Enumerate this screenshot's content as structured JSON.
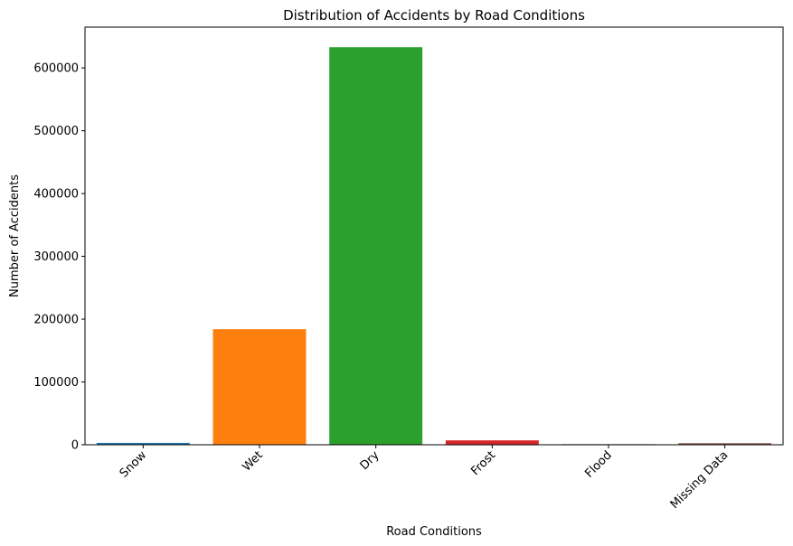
{
  "chart_data": {
    "type": "bar",
    "title": "Distribution of Accidents by Road Conditions",
    "xlabel": "Road Conditions",
    "ylabel": "Number of Accidents",
    "categories": [
      "Snow",
      "Wet",
      "Dry",
      "Frost",
      "Flood",
      "Missing Data"
    ],
    "values": [
      3000,
      184000,
      633000,
      7000,
      1000,
      2500
    ],
    "colors": [
      "#1f77b4",
      "#ff7f0e",
      "#2ca02c",
      "#d62728",
      "#9467bd",
      "#8c564b"
    ],
    "ylim": [
      0,
      665000
    ],
    "yticks": [
      0,
      100000,
      200000,
      300000,
      400000,
      500000,
      600000
    ],
    "ytick_labels": [
      "0",
      "100000",
      "200000",
      "300000",
      "400000",
      "500000",
      "600000"
    ],
    "grid": false,
    "xtick_rotation": 45
  }
}
